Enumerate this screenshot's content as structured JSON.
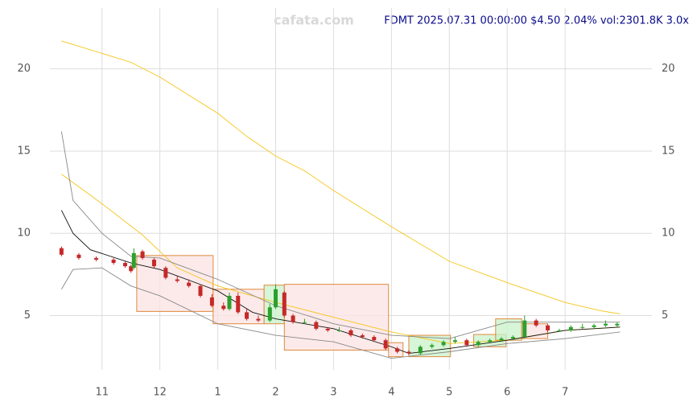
{
  "chart_data": {
    "type": "candlestick",
    "title": "FDMT 2025.07.31 00:00:00 $4.50 2.04% vol:2301.8K 3.0x",
    "watermark": "cafata.com",
    "xlim": [
      10.1,
      20.5
    ],
    "ylim": [
      1.7,
      23.7
    ],
    "yticks": [
      5,
      10,
      15,
      20
    ],
    "xticks": [
      11,
      12,
      {
        "value": 13,
        "label": "1"
      },
      {
        "value": 14,
        "label": "2"
      },
      {
        "value": 15,
        "label": "3"
      },
      {
        "value": 16,
        "label": "4"
      },
      {
        "value": 17,
        "label": "5"
      },
      {
        "value": 18,
        "label": "6"
      },
      {
        "value": 19,
        "label": "7"
      }
    ],
    "grid": true,
    "up_color": "#2ca02c",
    "down_color": "#c62828",
    "x": [
      10.3,
      10.6,
      10.9,
      11.2,
      11.4,
      11.5,
      11.55,
      11.7,
      11.9,
      12.1,
      12.3,
      12.5,
      12.7,
      12.9,
      13.1,
      13.2,
      13.35,
      13.5,
      13.7,
      13.9,
      14.0,
      14.15,
      14.3,
      14.5,
      14.7,
      14.9,
      15.1,
      15.3,
      15.5,
      15.7,
      15.9,
      16.1,
      16.3,
      16.5,
      16.7,
      16.9,
      17.1,
      17.3,
      17.5,
      17.7,
      17.9,
      18.1,
      18.3,
      18.5,
      18.7,
      18.9,
      19.1,
      19.3,
      19.5,
      19.7,
      19.9
    ],
    "open": [
      9.1,
      8.7,
      8.5,
      8.4,
      8.2,
      8.0,
      7.9,
      8.9,
      8.4,
      7.9,
      7.2,
      7.0,
      6.8,
      6.1,
      5.6,
      5.4,
      6.2,
      5.2,
      4.8,
      4.7,
      5.5,
      6.4,
      5.0,
      4.6,
      4.6,
      4.2,
      4.1,
      4.1,
      3.8,
      3.7,
      3.5,
      3.0,
      2.8,
      2.7,
      3.1,
      3.2,
      3.4,
      3.5,
      3.2,
      3.4,
      3.5,
      3.6,
      3.7,
      4.7,
      4.4,
      4.1,
      4.1,
      4.3,
      4.3,
      4.4,
      4.4
    ],
    "close": [
      8.7,
      8.5,
      8.4,
      8.2,
      8.0,
      7.7,
      8.8,
      8.5,
      8.0,
      7.3,
      7.1,
      6.8,
      6.2,
      5.6,
      5.4,
      6.2,
      5.2,
      4.8,
      4.7,
      5.5,
      6.6,
      5.0,
      4.6,
      4.6,
      4.2,
      4.1,
      4.1,
      3.8,
      3.7,
      3.5,
      3.0,
      2.8,
      2.7,
      3.1,
      3.2,
      3.4,
      3.5,
      3.2,
      3.4,
      3.5,
      3.6,
      3.7,
      4.7,
      4.4,
      4.1,
      4.1,
      4.3,
      4.3,
      4.4,
      4.5,
      4.5
    ],
    "high": [
      9.2,
      8.8,
      8.6,
      8.5,
      8.3,
      8.1,
      9.1,
      9.0,
      8.5,
      8.0,
      7.4,
      7.2,
      6.9,
      6.3,
      5.8,
      6.4,
      6.4,
      5.4,
      5.0,
      5.7,
      6.9,
      6.5,
      5.1,
      4.8,
      4.7,
      4.3,
      4.3,
      4.2,
      3.9,
      3.8,
      3.6,
      3.1,
      2.9,
      3.2,
      3.3,
      3.5,
      3.7,
      3.6,
      3.5,
      3.6,
      3.7,
      3.8,
      5.0,
      4.8,
      4.5,
      4.2,
      4.4,
      4.5,
      4.5,
      4.7,
      4.6
    ],
    "low": [
      8.6,
      8.4,
      8.3,
      8.1,
      7.9,
      7.6,
      7.8,
      8.4,
      7.9,
      7.2,
      7.0,
      6.7,
      6.1,
      5.5,
      5.3,
      5.3,
      5.1,
      4.7,
      4.6,
      4.6,
      5.4,
      4.9,
      4.5,
      4.5,
      4.1,
      4.0,
      4.0,
      3.7,
      3.6,
      3.4,
      2.9,
      2.7,
      2.6,
      2.6,
      3.0,
      3.1,
      3.3,
      3.1,
      3.1,
      3.3,
      3.4,
      3.5,
      3.6,
      4.3,
      4.0,
      4.0,
      4.0,
      4.2,
      4.2,
      4.3,
      4.3
    ],
    "lines": [
      {
        "color": "#f5c518",
        "x": [
          10.3,
          11.5,
          12,
          13,
          13.5,
          14,
          14.5,
          15,
          16,
          17,
          18,
          19,
          19.6,
          19.95
        ],
        "values": [
          21.7,
          20.4,
          19.5,
          17.3,
          15.9,
          14.7,
          13.8,
          12.6,
          10.4,
          8.3,
          7.0,
          5.8,
          5.3,
          5.1
        ]
      },
      {
        "color": "#f5c518",
        "x": [
          10.3,
          11,
          11.7,
          12.3,
          13,
          14,
          15,
          16,
          17,
          18,
          19,
          19.95
        ],
        "values": [
          13.6,
          11.8,
          9.9,
          7.9,
          6.8,
          5.8,
          4.9,
          4.0,
          3.3,
          3.5,
          4.1,
          4.3
        ]
      },
      {
        "color": "#111111",
        "x": [
          10.3,
          10.5,
          10.8,
          11.5,
          12,
          13,
          13.6,
          14,
          15,
          16,
          16.3,
          17,
          18,
          19,
          19.95
        ],
        "values": [
          11.4,
          10.0,
          9.0,
          8.2,
          7.8,
          6.5,
          5.2,
          4.8,
          4.2,
          3.1,
          2.7,
          3.0,
          3.5,
          4.1,
          4.3
        ]
      },
      {
        "color": "#888888",
        "x": [
          10.3,
          10.5,
          11,
          11.5,
          12,
          13,
          14,
          15,
          16,
          17,
          18,
          19,
          19.95
        ],
        "values": [
          16.2,
          12.0,
          10.0,
          8.6,
          8.5,
          7.2,
          5.6,
          4.5,
          3.8,
          3.6,
          4.6,
          4.6,
          4.6
        ]
      },
      {
        "color": "#888888",
        "x": [
          10.3,
          10.5,
          11,
          11.5,
          12,
          13,
          14,
          15,
          16,
          17,
          18,
          19,
          19.95
        ],
        "values": [
          6.6,
          7.8,
          7.9,
          6.8,
          6.2,
          4.5,
          3.8,
          3.4,
          2.4,
          2.8,
          3.3,
          3.6,
          4.0
        ]
      }
    ],
    "boxes": [
      {
        "x0": 11.6,
        "x1": 12.92,
        "y0": 5.25,
        "y1": 8.65,
        "color": "#fbe3e3"
      },
      {
        "x0": 12.92,
        "x1": 13.8,
        "y0": 4.5,
        "y1": 6.6,
        "color": "#fbe3e3"
      },
      {
        "x0": 13.8,
        "x1": 14.15,
        "y0": 4.5,
        "y1": 6.85,
        "color": "#c9f2c9"
      },
      {
        "x0": 14.15,
        "x1": 15.95,
        "y0": 2.9,
        "y1": 6.9,
        "color": "#fbe3e3"
      },
      {
        "x0": 15.95,
        "x1": 16.2,
        "y0": 2.5,
        "y1": 3.35,
        "color": "#fbe3e3"
      },
      {
        "x0": 16.3,
        "x1": 17.02,
        "y0": 2.5,
        "y1": 3.8,
        "color": "#c9f2c9"
      },
      {
        "x0": 17.42,
        "x1": 17.98,
        "y0": 3.1,
        "y1": 3.85,
        "color": "#c9f2c9"
      },
      {
        "x0": 17.8,
        "x1": 18.25,
        "y0": 3.5,
        "y1": 4.8,
        "color": "#c9f2c9"
      },
      {
        "x0": 18.25,
        "x1": 18.7,
        "y0": 3.6,
        "y1": 4.5,
        "color": "#fbe3e3"
      }
    ]
  }
}
